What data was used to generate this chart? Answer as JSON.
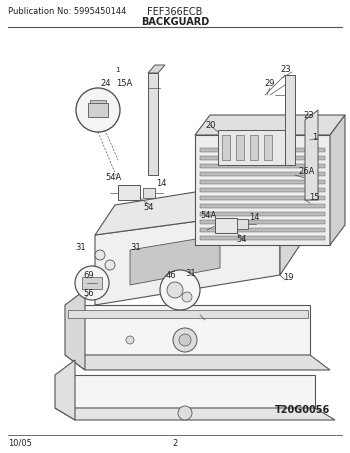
{
  "pub_no": "Publication No: 5995450144",
  "model": "FEF366ECB",
  "section": "BACKGUARD",
  "diagram_id": "T20G0056",
  "date": "10/05",
  "page": "2",
  "bg_color": "#ffffff",
  "line_color": "#555555",
  "text_color": "#222222",
  "fig_width": 3.5,
  "fig_height": 4.53,
  "dpi": 100
}
